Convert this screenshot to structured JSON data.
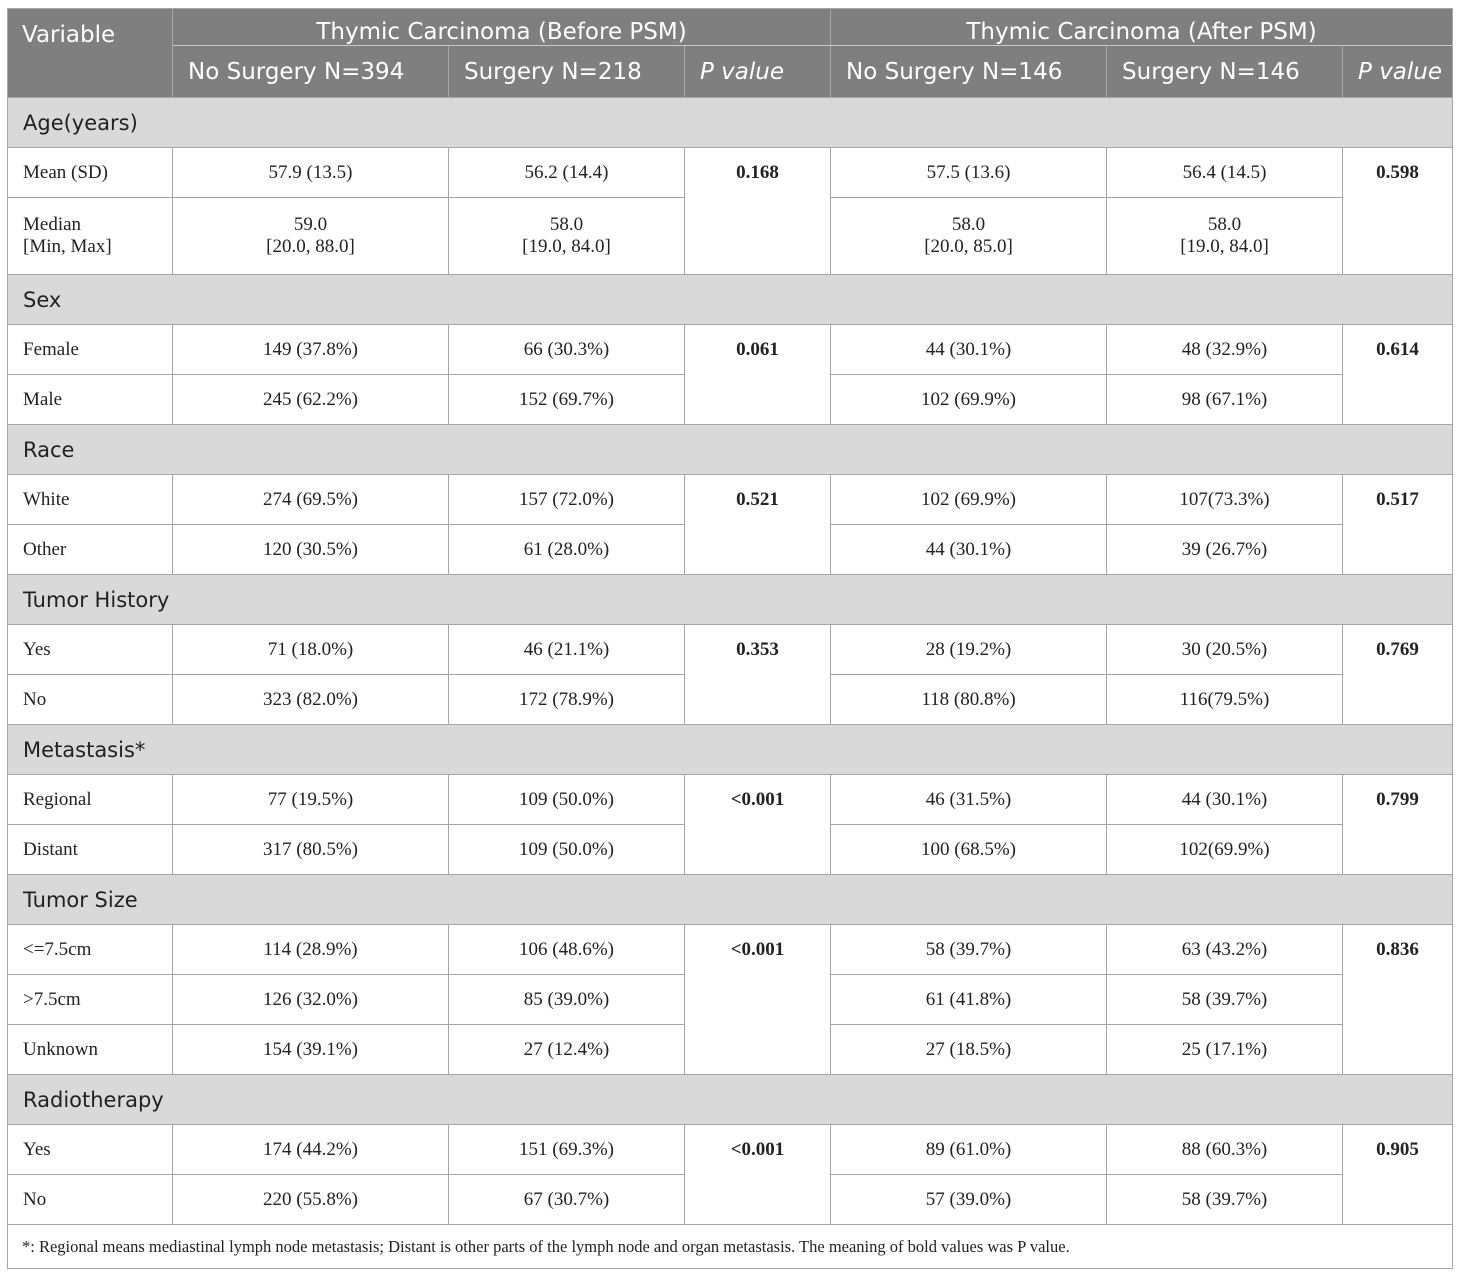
{
  "header": {
    "variable": "Variable",
    "group_before": "Thymic Carcinoma (Before PSM)",
    "group_after": "Thymic Carcinoma (After PSM)",
    "before_no_surgery": "No Surgery N=394",
    "before_surgery": "Surgery N=218",
    "before_p": "P value",
    "after_no_surgery": "No Surgery N=146",
    "after_surgery": "Surgery N=146",
    "after_p": "P value"
  },
  "sections": [
    {
      "title": "Age(years)",
      "p_before": "0.168",
      "p_after": "0.598",
      "rows": [
        {
          "label": "Mean (SD)",
          "b_ns": "57.9 (13.5)",
          "b_s": "56.2 (14.4)",
          "a_ns": "57.5 (13.6)",
          "a_s": "56.4 (14.5)"
        },
        {
          "label": "Median\n[Min, Max]",
          "b_ns": "59.0\n[20.0, 88.0]",
          "b_s": "58.0\n[19.0, 84.0]",
          "a_ns": "58.0\n[20.0, 85.0]",
          "a_s": "58.0\n[19.0, 84.0]"
        }
      ]
    },
    {
      "title": "Sex",
      "p_before": "0.061",
      "p_after": "0.614",
      "rows": [
        {
          "label": "Female",
          "b_ns": "149 (37.8%)",
          "b_s": "66 (30.3%)",
          "a_ns": "44 (30.1%)",
          "a_s": "48 (32.9%)"
        },
        {
          "label": "Male",
          "b_ns": "245 (62.2%)",
          "b_s": "152 (69.7%)",
          "a_ns": "102 (69.9%)",
          "a_s": "98 (67.1%)"
        }
      ]
    },
    {
      "title": "Race",
      "p_before": "0.521",
      "p_after": "0.517",
      "rows": [
        {
          "label": "White",
          "b_ns": "274 (69.5%)",
          "b_s": "157 (72.0%)",
          "a_ns": "102 (69.9%)",
          "a_s": "107(73.3%)"
        },
        {
          "label": "Other",
          "b_ns": "120 (30.5%)",
          "b_s": "61 (28.0%)",
          "a_ns": "44 (30.1%)",
          "a_s": "39 (26.7%)"
        }
      ]
    },
    {
      "title": "Tumor History",
      "p_before": "0.353",
      "p_after": "0.769",
      "rows": [
        {
          "label": "Yes",
          "b_ns": "71 (18.0%)",
          "b_s": "46 (21.1%)",
          "a_ns": "28 (19.2%)",
          "a_s": "30 (20.5%)"
        },
        {
          "label": "No",
          "b_ns": "323 (82.0%)",
          "b_s": "172 (78.9%)",
          "a_ns": "118 (80.8%)",
          "a_s": "116(79.5%)"
        }
      ]
    },
    {
      "title": "Metastasis*",
      "p_before": "<0.001",
      "p_after": "0.799",
      "rows": [
        {
          "label": "Regional",
          "b_ns": "77 (19.5%)",
          "b_s": "109 (50.0%)",
          "a_ns": "46 (31.5%)",
          "a_s": "44 (30.1%)"
        },
        {
          "label": "Distant",
          "b_ns": "317 (80.5%)",
          "b_s": "109 (50.0%)",
          "a_ns": "100 (68.5%)",
          "a_s": "102(69.9%)"
        }
      ]
    },
    {
      "title": "Tumor Size",
      "p_before": "<0.001",
      "p_after": "0.836",
      "rows": [
        {
          "label": "<=7.5cm",
          "b_ns": "114 (28.9%)",
          "b_s": "106 (48.6%)",
          "a_ns": "58 (39.7%)",
          "a_s": "63 (43.2%)"
        },
        {
          "label": ">7.5cm",
          "b_ns": "126 (32.0%)",
          "b_s": "85 (39.0%)",
          "a_ns": "61 (41.8%)",
          "a_s": "58 (39.7%)"
        },
        {
          "label": "Unknown",
          "b_ns": "154 (39.1%)",
          "b_s": "27 (12.4%)",
          "a_ns": "27 (18.5%)",
          "a_s": "25 (17.1%)"
        }
      ]
    },
    {
      "title": "Radiotherapy",
      "p_before": "<0.001",
      "p_after": "0.905",
      "rows": [
        {
          "label": "Yes",
          "b_ns": "174 (44.2%)",
          "b_s": "151 (69.3%)",
          "a_ns": "89 (61.0%)",
          "a_s": "88 (60.3%)"
        },
        {
          "label": "No",
          "b_ns": "220 (55.8%)",
          "b_s": "67 (30.7%)",
          "a_ns": "57 (39.0%)",
          "a_s": "58 (39.7%)"
        }
      ]
    }
  ],
  "footnote": "*: Regional means mediastinal lymph node metastasis; Distant is other parts of the lymph node and organ metastasis. The meaning of bold values was P value."
}
